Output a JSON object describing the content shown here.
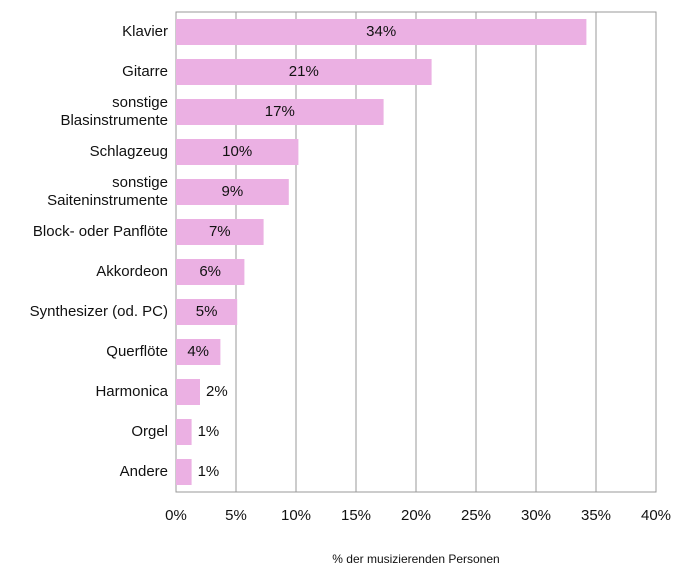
{
  "chart_data": {
    "type": "hbar",
    "categories": [
      "Klavier",
      "Gitarre",
      "sonstige\nBlasinstrumente",
      "Schlagzeug",
      "sonstige\nSaiteninstrumente",
      "Block- oder Panflöte",
      "Akkordeon",
      "Synthesizer (od. PC)",
      "Querflöte",
      "Harmonica",
      "Orgel",
      "Andere"
    ],
    "values": [
      34.2,
      21.3,
      17.3,
      10.2,
      9.4,
      7.3,
      5.7,
      5.1,
      3.7,
      2.0,
      1.3,
      1.3
    ],
    "value_labels": [
      "34%",
      "21%",
      "17%",
      "10%",
      "9%",
      "7%",
      "6%",
      "5%",
      "4%",
      "2%",
      "1%",
      "1%"
    ],
    "color": "#ebb0e3",
    "xlabel": "% der musizierenden Personen",
    "xlim": [
      0,
      40
    ],
    "xticks": [
      {
        "value": 0,
        "label": "0%"
      },
      {
        "value": 5,
        "label": "5%"
      },
      {
        "value": 10,
        "label": "10%"
      },
      {
        "value": 15,
        "label": "15%"
      },
      {
        "value": 20,
        "label": "20%"
      },
      {
        "value": 25,
        "label": "25%"
      },
      {
        "value": 30,
        "label": "30%"
      },
      {
        "value": 35,
        "label": "35%"
      },
      {
        "value": 40,
        "label": "40%"
      }
    ],
    "grid": true
  }
}
